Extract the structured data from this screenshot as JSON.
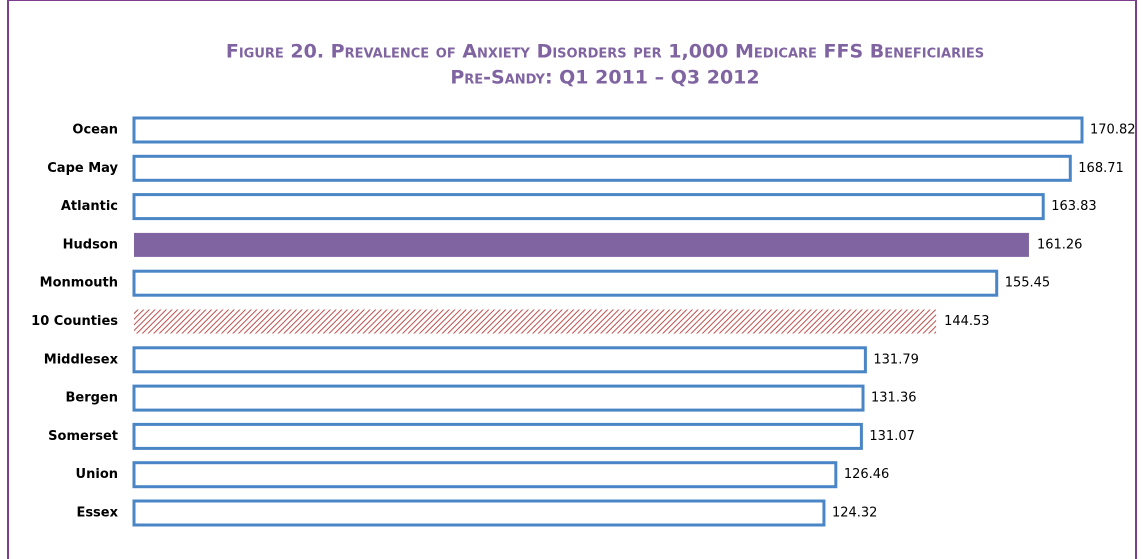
{
  "chart_data": {
    "type": "bar",
    "orientation": "horizontal",
    "title": "Figure 20. Prevalence of Anxiety Disorders per 1,000 Medicare FFS Beneficiaries",
    "subtitle": "Pre-Sandy: Q1 2011 – Q3 2012",
    "categories": [
      "Ocean",
      "Cape May",
      "Atlantic",
      "Hudson",
      "Monmouth",
      "10 Counties",
      "Middlesex",
      "Bergen",
      "Somerset",
      "Union",
      "Essex"
    ],
    "values": [
      170.82,
      168.71,
      163.83,
      161.26,
      155.45,
      144.53,
      131.79,
      131.36,
      131.07,
      126.46,
      124.32
    ],
    "colors": [
      "#4a86c5",
      "#4a86c5",
      "#4a86c5",
      "#8064a2",
      "#4a86c5",
      "#c0504d",
      "#4a86c5",
      "#4a86c5",
      "#4a86c5",
      "#4a86c5",
      "#4a86c5"
    ],
    "fills": [
      "outline",
      "outline",
      "outline",
      "solid",
      "outline",
      "hatch",
      "outline",
      "outline",
      "outline",
      "outline",
      "outline"
    ]
  }
}
